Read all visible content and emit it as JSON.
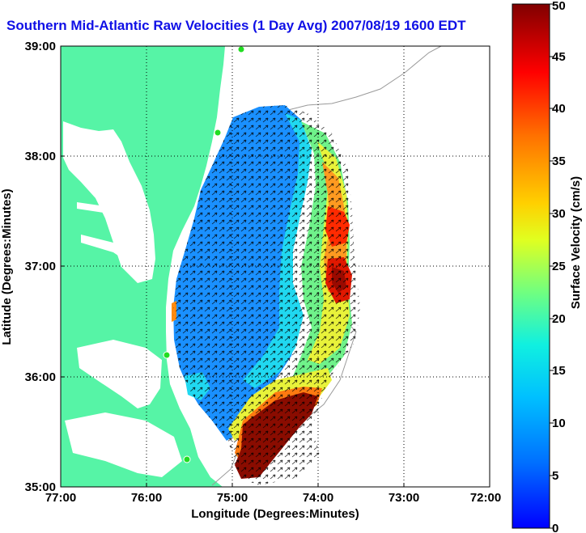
{
  "title": "Southern Mid-Atlantic Raw Velocities (1 Day Avg) 2007/08/19 1600 EDT",
  "colorbar_label": "Surface Velocity (cm/s)",
  "colors": {
    "land": "#56f4a6",
    "water": "#ffffff",
    "title": "#1010e6"
  },
  "chart_data": {
    "type": "heatmap",
    "xlabel": "Longitude (Degrees:Minutes)",
    "ylabel": "Latitude (Degrees:Minutes)",
    "x_ticks": [
      "77:00",
      "76:00",
      "75:00",
      "74:00",
      "73:00",
      "72:00"
    ],
    "y_ticks": [
      "39:00",
      "38:00",
      "37:00",
      "36:00",
      "35:00"
    ],
    "xlim": [
      -77,
      -72
    ],
    "ylim": [
      35,
      39
    ],
    "grid": "dotted",
    "colorbar": {
      "range": [
        0,
        50
      ],
      "ticks": [
        "0",
        "5",
        "10",
        "15",
        "20",
        "25",
        "30",
        "35",
        "40",
        "45",
        "50"
      ],
      "units": "cm/s"
    }
  }
}
